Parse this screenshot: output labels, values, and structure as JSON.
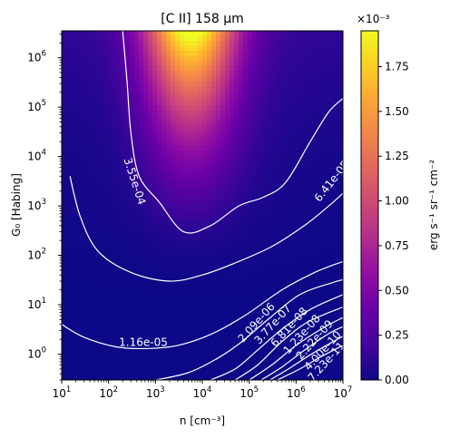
{
  "chart_data": {
    "type": "heatmap",
    "title": "[C II] 158 μm",
    "xlabel": "n [cm⁻³]",
    "ylabel": "G₀ [Habing]",
    "xscale": "log",
    "yscale": "log",
    "xlim": [
      10,
      10000000
    ],
    "ylim": [
      0.3,
      3500000
    ],
    "x_ticks": [
      {
        "value": 10,
        "mant": "10",
        "exp": "1"
      },
      {
        "value": 100,
        "mant": "10",
        "exp": "2"
      },
      {
        "value": 1000,
        "mant": "10",
        "exp": "3"
      },
      {
        "value": 10000,
        "mant": "10",
        "exp": "4"
      },
      {
        "value": 100000,
        "mant": "10",
        "exp": "5"
      },
      {
        "value": 1000000,
        "mant": "10",
        "exp": "6"
      },
      {
        "value": 10000000,
        "mant": "10",
        "exp": "7"
      }
    ],
    "y_ticks": [
      {
        "value": 1,
        "mant": "10",
        "exp": "0"
      },
      {
        "value": 10,
        "mant": "10",
        "exp": "1"
      },
      {
        "value": 100,
        "mant": "10",
        "exp": "2"
      },
      {
        "value": 1000,
        "mant": "10",
        "exp": "3"
      },
      {
        "value": 10000,
        "mant": "10",
        "exp": "4"
      },
      {
        "value": 100000,
        "mant": "10",
        "exp": "5"
      },
      {
        "value": 1000000,
        "mant": "10",
        "exp": "6"
      }
    ],
    "colorbar": {
      "label": "erg s⁻¹ sr⁻¹ cm⁻²",
      "multiplier": "×10⁻³",
      "min": 0,
      "max": 0.00195,
      "ticks": [
        {
          "value": 0.0,
          "label": "0.00"
        },
        {
          "value": 0.00025,
          "label": "0.25"
        },
        {
          "value": 0.0005,
          "label": "0.50"
        },
        {
          "value": 0.00075,
          "label": "0.75"
        },
        {
          "value": 0.001,
          "label": "1.00"
        },
        {
          "value": 0.00125,
          "label": "1.25"
        },
        {
          "value": 0.0015,
          "label": "1.50"
        },
        {
          "value": 0.00175,
          "label": "1.75"
        }
      ],
      "colormap": "plasma"
    },
    "contours": [
      {
        "label": "3.55e-04",
        "points": [
          [
            200,
            3500000
          ],
          [
            250,
            300000
          ],
          [
            300,
            30000
          ],
          [
            450,
            4000
          ],
          [
            1200,
            1200
          ],
          [
            4000,
            300
          ],
          [
            15000,
            400
          ],
          [
            60000,
            1000
          ],
          [
            200000,
            1500
          ],
          [
            600000,
            3000
          ],
          [
            2000000,
            20000
          ],
          [
            5000000,
            80000
          ],
          [
            10000000,
            150000
          ]
        ]
      },
      {
        "label": "6.41e-05",
        "points": [
          [
            15,
            4000
          ],
          [
            25,
            600
          ],
          [
            60,
            120
          ],
          [
            300,
            45
          ],
          [
            2000,
            30
          ],
          [
            10000,
            40
          ],
          [
            50000,
            70
          ],
          [
            300000,
            150
          ],
          [
            1500000,
            400
          ],
          [
            5000000,
            1000
          ],
          [
            10000000,
            1800
          ]
        ]
      },
      {
        "label": "1.16e-05",
        "points": [
          [
            10,
            4
          ],
          [
            30,
            2.2
          ],
          [
            150,
            1.4
          ],
          [
            700,
            1.3
          ],
          [
            3000,
            1.5
          ],
          [
            15000,
            2.5
          ],
          [
            80000,
            6
          ],
          [
            500000,
            20
          ],
          [
            2500000,
            45
          ],
          [
            10000000,
            75
          ]
        ]
      },
      {
        "label": "2.09e-06",
        "points": [
          [
            1000,
            0.3
          ],
          [
            5000,
            0.42
          ],
          [
            20000,
            0.8
          ],
          [
            60000,
            1.6
          ],
          [
            250000,
            5
          ],
          [
            1200000,
            16
          ],
          [
            6000000,
            28
          ],
          [
            10000000,
            32
          ]
        ]
      },
      {
        "label": "3.77e-07",
        "points": [
          [
            15000,
            0.3
          ],
          [
            50000,
            0.5
          ],
          [
            150000,
            1.2
          ],
          [
            500000,
            3.2
          ],
          [
            2000000,
            8
          ],
          [
            10000000,
            16
          ]
        ]
      },
      {
        "label": "6.81e-08",
        "points": [
          [
            50000,
            0.3
          ],
          [
            150000,
            0.6
          ],
          [
            500000,
            1.8
          ],
          [
            1800000,
            4.5
          ],
          [
            10000000,
            9
          ]
        ]
      },
      {
        "label": "1.23e-08",
        "points": [
          [
            100000,
            0.3
          ],
          [
            300000,
            0.6
          ],
          [
            1000000,
            1.5
          ],
          [
            4000000,
            3.5
          ],
          [
            10000000,
            5.5
          ]
        ]
      },
      {
        "label": "2.22e-09",
        "points": [
          [
            180000,
            0.3
          ],
          [
            500000,
            0.55
          ],
          [
            1500000,
            1.2
          ],
          [
            5000000,
            2.6
          ],
          [
            10000000,
            3.6
          ]
        ]
      },
      {
        "label": "4.00e-10",
        "points": [
          [
            280000,
            0.3
          ],
          [
            800000,
            0.55
          ],
          [
            2500000,
            1.1
          ],
          [
            10000000,
            2.3
          ]
        ]
      },
      {
        "label": "7.23e-11",
        "points": [
          [
            400000,
            0.3
          ],
          [
            1200000,
            0.5
          ],
          [
            3500000,
            0.9
          ],
          [
            10000000,
            1.5
          ]
        ]
      }
    ]
  }
}
